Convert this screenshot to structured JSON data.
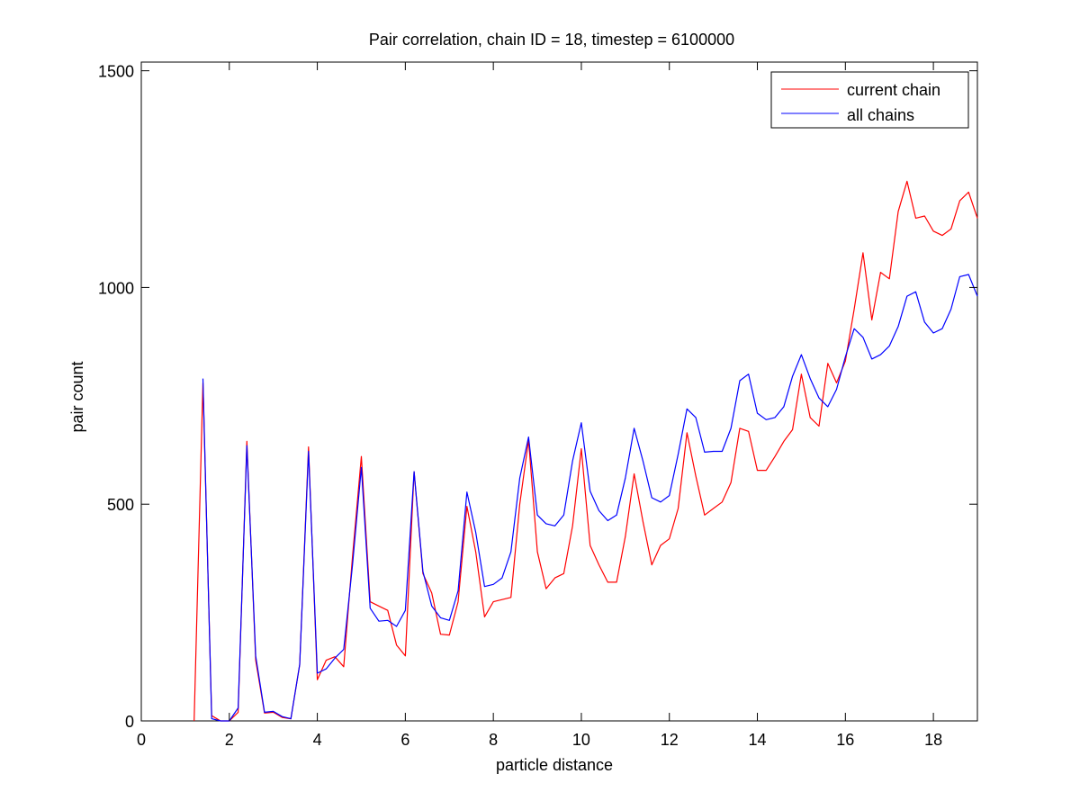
{
  "chart_data": {
    "type": "line",
    "title": "Pair correlation, chain ID = 18, timestep = 6100000",
    "xlabel": "particle distance",
    "ylabel": "pair count",
    "xlim": [
      0,
      19
    ],
    "ylim": [
      0,
      1520
    ],
    "xticks": [
      0,
      2,
      4,
      6,
      8,
      10,
      12,
      14,
      16,
      18
    ],
    "yticks": [
      0,
      500,
      1000,
      1500
    ],
    "grid": false,
    "legend_position": "top-right",
    "series": [
      {
        "name": "current chain",
        "color": "#ff0000",
        "x": [
          1.2,
          1.4,
          1.6,
          1.8,
          2.0,
          2.2,
          2.4,
          2.6,
          2.8,
          3.0,
          3.2,
          3.4,
          3.6,
          3.8,
          4.0,
          4.2,
          4.4,
          4.6,
          4.8,
          5.0,
          5.2,
          5.4,
          5.6,
          5.8,
          6.0,
          6.2,
          6.4,
          6.6,
          6.8,
          7.0,
          7.2,
          7.4,
          7.6,
          7.8,
          8.0,
          8.2,
          8.4,
          8.6,
          8.8,
          9.0,
          9.2,
          9.4,
          9.6,
          9.8,
          10.0,
          10.2,
          10.4,
          10.6,
          10.8,
          11.0,
          11.2,
          11.4,
          11.6,
          11.8,
          12.0,
          12.2,
          12.4,
          12.6,
          12.8,
          13.0,
          13.2,
          13.4,
          13.6,
          13.8,
          14.0,
          14.2,
          14.4,
          14.6,
          14.8,
          15.0,
          15.2,
          15.4,
          15.6,
          15.8,
          16.0,
          16.2,
          16.4,
          16.6,
          16.8,
          17.0,
          17.2,
          17.4,
          17.6,
          17.8,
          18.0,
          18.2,
          18.4,
          18.6,
          18.8,
          19.0
        ],
        "values": [
          0,
          780,
          12,
          0,
          0,
          20,
          645,
          140,
          18,
          20,
          8,
          5,
          130,
          632,
          95,
          140,
          148,
          125,
          380,
          610,
          275,
          265,
          255,
          175,
          150,
          575,
          340,
          295,
          200,
          198,
          275,
          495,
          390,
          240,
          275,
          280,
          285,
          500,
          648,
          390,
          305,
          330,
          340,
          450,
          628,
          405,
          360,
          320,
          320,
          425,
          570,
          460,
          360,
          405,
          420,
          490,
          665,
          565,
          475,
          490,
          505,
          550,
          675,
          668,
          578,
          578,
          610,
          645,
          672,
          800,
          700,
          680,
          825,
          780,
          830,
          950,
          1080,
          925,
          1035,
          1020,
          1175,
          1245,
          1160,
          1165,
          1130,
          1120,
          1135,
          1200,
          1220,
          1160
        ]
      },
      {
        "name": "all chains",
        "color": "#0000ff",
        "x": [
          1.4,
          1.6,
          1.8,
          2.0,
          2.2,
          2.4,
          2.6,
          2.8,
          3.0,
          3.2,
          3.4,
          3.6,
          3.8,
          4.0,
          4.2,
          4.4,
          4.6,
          4.8,
          5.0,
          5.2,
          5.4,
          5.6,
          5.8,
          6.0,
          6.2,
          6.4,
          6.6,
          6.8,
          7.0,
          7.2,
          7.4,
          7.6,
          7.8,
          8.0,
          8.2,
          8.4,
          8.6,
          8.8,
          9.0,
          9.2,
          9.4,
          9.6,
          9.8,
          10.0,
          10.2,
          10.4,
          10.6,
          10.8,
          11.0,
          11.2,
          11.4,
          11.6,
          11.8,
          12.0,
          12.2,
          12.4,
          12.6,
          12.8,
          13.0,
          13.2,
          13.4,
          13.6,
          13.8,
          14.0,
          14.2,
          14.4,
          14.6,
          14.8,
          15.0,
          15.2,
          15.4,
          15.6,
          15.8,
          16.0,
          16.2,
          16.4,
          16.6,
          16.8,
          17.0,
          17.2,
          17.4,
          17.6,
          17.8,
          18.0,
          18.2,
          18.4,
          18.6,
          18.8,
          19.0
        ],
        "values": [
          790,
          5,
          0,
          0,
          30,
          635,
          150,
          20,
          22,
          10,
          5,
          130,
          622,
          110,
          120,
          145,
          165,
          360,
          585,
          260,
          230,
          232,
          218,
          255,
          575,
          345,
          265,
          238,
          232,
          300,
          528,
          435,
          310,
          315,
          330,
          390,
          560,
          655,
          475,
          455,
          450,
          475,
          600,
          688,
          530,
          485,
          462,
          475,
          560,
          675,
          600,
          515,
          505,
          520,
          615,
          720,
          700,
          620,
          622,
          622,
          675,
          785,
          800,
          710,
          695,
          700,
          725,
          795,
          845,
          790,
          745,
          725,
          765,
          840,
          905,
          885,
          835,
          845,
          865,
          910,
          980,
          990,
          920,
          895,
          905,
          950,
          1025,
          1030,
          980
        ]
      }
    ]
  }
}
